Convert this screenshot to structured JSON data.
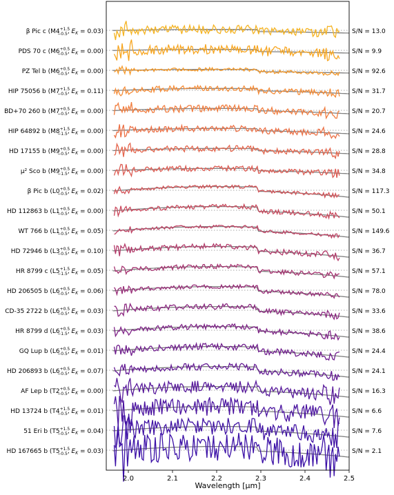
{
  "chart_data": {
    "type": "line",
    "title": "",
    "xlabel": "Wavelength [µm]",
    "ylabel": "",
    "xlim": [
      1.95,
      2.5
    ],
    "xticks": [
      2.0,
      2.1,
      2.2,
      2.3,
      2.4,
      2.5
    ],
    "xtick_labels": [
      "2.0",
      "2.1",
      "2.2",
      "2.3",
      "2.4",
      "2.5"
    ],
    "grid": false,
    "legend": "none",
    "model_color": "#7f7f7f",
    "reference_line_style": "dotted",
    "series": [
      {
        "label_name": "β Pic c",
        "spt": "M4",
        "sup": "+1.5",
        "sub": "−0.5",
        "ek": "0.03",
        "snr": "S/N = 13.0",
        "color": "#f5b321"
      },
      {
        "label_name": "PDS 70 c",
        "spt": "M6",
        "sup": "+0.5",
        "sub": "−0.5",
        "ek": "0.00",
        "snr": "S/N = 9.9",
        "color": "#f7a51f"
      },
      {
        "label_name": "PZ Tel b",
        "spt": "M6",
        "sup": "+0.5",
        "sub": "−0.5",
        "ek": "0.00",
        "snr": "S/N = 92.6",
        "color": "#f69a2a"
      },
      {
        "label_name": "HIP 75056 b",
        "spt": "M7",
        "sup": "+1.5",
        "sub": "−0.5",
        "ek": "0.11",
        "snr": "S/N = 31.7",
        "color": "#f58b35"
      },
      {
        "label_name": "BD+70 260 b",
        "spt": "M7",
        "sup": "+0.5",
        "sub": "−0.5",
        "ek": "0.00",
        "snr": "S/N = 20.7",
        "color": "#f17d3e"
      },
      {
        "label_name": "HIP 64892 b",
        "spt": "M8",
        "sup": "+1.5",
        "sub": "−1.5",
        "ek": "0.00",
        "snr": "S/N = 24.6",
        "color": "#ec7045"
      },
      {
        "label_name": "HD 17155 b",
        "spt": "M9",
        "sup": "+0.5",
        "sub": "−0.5",
        "ek": "0.00",
        "snr": "S/N = 28.8",
        "color": "#e5654c"
      },
      {
        "label_name": "µ² Sco b",
        "spt": "M9",
        "sup": "+0.5",
        "sub": "−1.5",
        "ek": "0.00",
        "snr": "S/N = 34.8",
        "color": "#dd5b52"
      },
      {
        "label_name": "β Pic b",
        "spt": "L0",
        "sup": "+0.5",
        "sub": "−0.5",
        "ek": "0.02",
        "snr": "S/N = 117.3",
        "color": "#d45257"
      },
      {
        "label_name": "HD 112863 b",
        "spt": "L1",
        "sup": "+0.5",
        "sub": "−0.5",
        "ek": "0.00",
        "snr": "S/N = 50.1",
        "color": "#ca495d"
      },
      {
        "label_name": "WT 766 b",
        "spt": "L1",
        "sup": "+0.5",
        "sub": "−0.5",
        "ek": "0.05",
        "snr": "S/N = 149.6",
        "color": "#bf4163"
      },
      {
        "label_name": "HD 72946 b",
        "spt": "L3",
        "sup": "+0.5",
        "sub": "−0.5",
        "ek": "0.10",
        "snr": "S/N = 36.7",
        "color": "#b33a6a"
      },
      {
        "label_name": "HR 8799 c",
        "spt": "L5",
        "sup": "+1.5",
        "sub": "−1.5",
        "ek": "0.05",
        "snr": "S/N = 57.1",
        "color": "#a63371"
      },
      {
        "label_name": "HD 206505 b",
        "spt": "L6",
        "sup": "+0.5",
        "sub": "−0.5",
        "ek": "0.06",
        "snr": "S/N = 78.0",
        "color": "#992d79"
      },
      {
        "label_name": "CD-35 2722 b",
        "spt": "L6",
        "sup": "+0.5",
        "sub": "−0.5",
        "ek": "0.03",
        "snr": "S/N = 33.6",
        "color": "#8b2780"
      },
      {
        "label_name": "HR 8799 d",
        "spt": "L6",
        "sup": "+0.5",
        "sub": "−1.5",
        "ek": "0.03",
        "snr": "S/N = 38.6",
        "color": "#7e2287"
      },
      {
        "label_name": "GQ Lup b",
        "spt": "L6",
        "sup": "+0.5",
        "sub": "−0.5",
        "ek": "0.01",
        "snr": "S/N = 24.4",
        "color": "#701e8e"
      },
      {
        "label_name": "HD 206893 b",
        "spt": "L6",
        "sup": "+0.5",
        "sub": "−0.5",
        "ek": "0.07",
        "snr": "S/N = 24.1",
        "color": "#631a94"
      },
      {
        "label_name": "AF Lep b",
        "spt": "T2",
        "sup": "+0.5",
        "sub": "−0.5",
        "ek": "0.00",
        "snr": "S/N = 16.3",
        "color": "#56179a"
      },
      {
        "label_name": "HD 13724 b",
        "spt": "T4",
        "sup": "+1.5",
        "sub": "−0.5",
        "ek": "0.01",
        "snr": "S/N = 6.6",
        "color": "#4a139f"
      },
      {
        "label_name": "51 Eri b",
        "spt": "T5",
        "sup": "+1.5",
        "sub": "−0.5",
        "ek": "0.04",
        "snr": "S/N = 7.6",
        "color": "#3f11a3"
      },
      {
        "label_name": "HD 167665 b",
        "spt": "T5",
        "sup": "+1.5",
        "sub": "−0.5",
        "ek": "0.03",
        "snr": "S/N = 2.1",
        "color": "#3a0fa6"
      }
    ]
  }
}
